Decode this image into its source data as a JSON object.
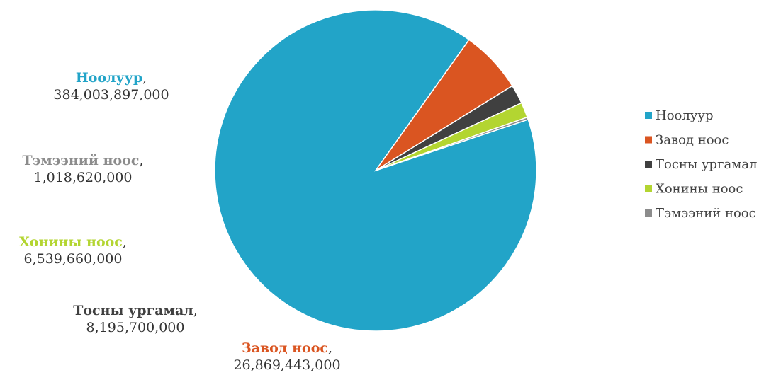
{
  "chart_data": {
    "type": "pie",
    "title": "",
    "legend_position": "right",
    "slices": [
      {
        "name": "Ноолуур",
        "value": 384003897000,
        "display": "384,003,897,000",
        "color": "#22A4C8"
      },
      {
        "name": "Завод ноос",
        "value": 26869443000,
        "display": "26,869,443,000",
        "color": "#DA5521"
      },
      {
        "name": "Тосны ургамал",
        "value": 8195700000,
        "display": "8,195,700,000",
        "color": "#404040"
      },
      {
        "name": "Хонины ноос",
        "value": 6539660000,
        "display": "6,539,660,000",
        "color": "#B3D531"
      },
      {
        "name": "Тэмээний ноос",
        "value": 1018620000,
        "display": "1,018,620,000",
        "color": "#8C8C8C"
      }
    ]
  }
}
